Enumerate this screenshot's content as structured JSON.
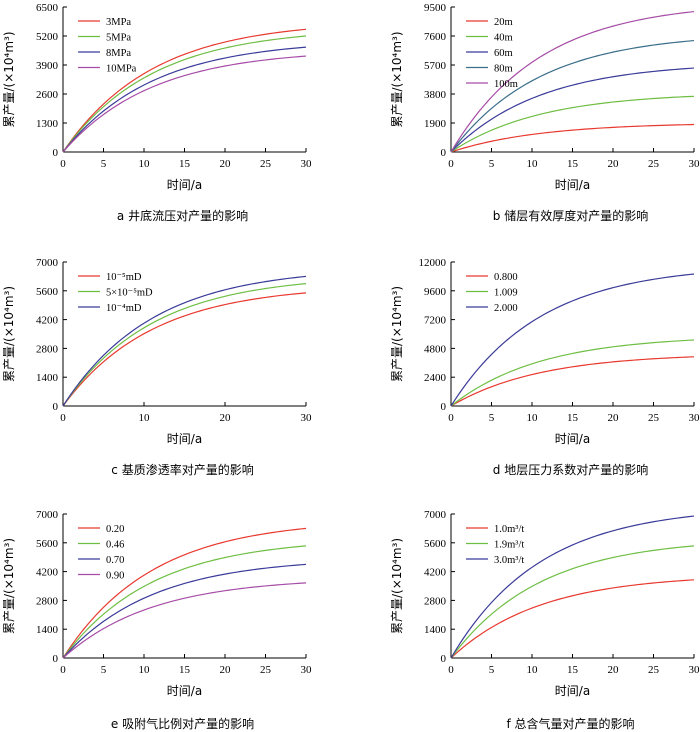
{
  "chart_data": [
    {
      "type": "line",
      "id": "a",
      "caption": "a  井底流压对产量的影响",
      "xlabel": "时间/a",
      "ylabel": "累产量/(×10⁴m³)",
      "xlim": [
        0,
        30
      ],
      "ylim": [
        0,
        6500
      ],
      "xticks": [
        0,
        5,
        10,
        15,
        20,
        25,
        30
      ],
      "yticks": [
        0,
        1300,
        2600,
        3900,
        5200,
        6500
      ],
      "legend_position": "top-left",
      "series": [
        {
          "name": "3MPa",
          "color": "#e8392f",
          "values_at_30": 5500
        },
        {
          "name": "5MPa",
          "color": "#6fbe44",
          "values_at_30": 5200
        },
        {
          "name": "8MPa",
          "color": "#3b3b9a",
          "values_at_30": 4700
        },
        {
          "name": "10MPa",
          "color": "#a64ca6",
          "values_at_30": 4300
        }
      ]
    },
    {
      "type": "line",
      "id": "b",
      "caption": "b  储层有效厚度对产量的影响",
      "xlabel": "时间/a",
      "ylabel": "累产量/(×10⁴m³)",
      "xlim": [
        0,
        30
      ],
      "ylim": [
        0,
        9500
      ],
      "xticks": [
        0,
        5,
        10,
        15,
        20,
        25,
        30
      ],
      "yticks": [
        0,
        1900,
        3800,
        5700,
        7600,
        9500
      ],
      "legend_position": "top-left",
      "series": [
        {
          "name": "20m",
          "color": "#e8392f",
          "values_at_30": 1800
        },
        {
          "name": "40m",
          "color": "#6fbe44",
          "values_at_30": 3650
        },
        {
          "name": "60m",
          "color": "#3b3b9a",
          "values_at_30": 5500
        },
        {
          "name": "80m",
          "color": "#3b6e8a",
          "values_at_30": 7300
        },
        {
          "name": "100m",
          "color": "#a64ca6",
          "values_at_30": 9200
        }
      ]
    },
    {
      "type": "line",
      "id": "c",
      "caption": "c  基质渗透率对产量的影响",
      "xlabel": "时间/a",
      "ylabel": "累产量/(×10⁴m³)",
      "xlim": [
        0,
        30
      ],
      "ylim": [
        0,
        7000
      ],
      "xticks": [
        0,
        10,
        20,
        30
      ],
      "yticks": [
        0,
        1400,
        2800,
        4200,
        5600,
        7000
      ],
      "legend_position": "top-left",
      "series": [
        {
          "name": "10⁻⁵mD",
          "color": "#e8392f",
          "values_at_30": 5500
        },
        {
          "name": "5×10⁻⁵mD",
          "color": "#6fbe44",
          "values_at_30": 5950
        },
        {
          "name": "10⁻⁴mD",
          "color": "#3b3b9a",
          "values_at_30": 6300
        }
      ]
    },
    {
      "type": "line",
      "id": "d",
      "caption": "d  地层压力系数对产量的影响",
      "xlabel": "时间/a",
      "ylabel": "累产量/(×10⁴m³)",
      "xlim": [
        0,
        30
      ],
      "ylim": [
        0,
        12000
      ],
      "xticks": [
        0,
        5,
        10,
        15,
        20,
        25,
        30
      ],
      "yticks": [
        0,
        2400,
        4800,
        7200,
        9600,
        12000
      ],
      "legend_position": "top-left",
      "series": [
        {
          "name": "0.800",
          "color": "#e8392f",
          "values_at_30": 4100
        },
        {
          "name": "1.009",
          "color": "#6fbe44",
          "values_at_30": 5500
        },
        {
          "name": "2.000",
          "color": "#3b3b9a",
          "values_at_30": 11000
        }
      ]
    },
    {
      "type": "line",
      "id": "e",
      "caption": "e  吸附气比例对产量的影响",
      "xlabel": "时间/a",
      "ylabel": "累产量/(×10⁴m³)",
      "xlim": [
        0,
        30
      ],
      "ylim": [
        0,
        7000
      ],
      "xticks": [
        0,
        5,
        10,
        15,
        20,
        25,
        30
      ],
      "yticks": [
        0,
        1400,
        2800,
        4200,
        5600,
        7000
      ],
      "legend_position": "top-left",
      "series": [
        {
          "name": "0.20",
          "color": "#e8392f",
          "values_at_30": 6300
        },
        {
          "name": "0.46",
          "color": "#6fbe44",
          "values_at_30": 5450
        },
        {
          "name": "0.70",
          "color": "#3b3b9a",
          "values_at_30": 4550
        },
        {
          "name": "0.90",
          "color": "#a64ca6",
          "values_at_30": 3650
        }
      ]
    },
    {
      "type": "line",
      "id": "f",
      "caption": "f  总含气量对产量的影响",
      "xlabel": "时间/a",
      "ylabel": "累产量/(×10⁴m³)",
      "xlim": [
        0,
        30
      ],
      "ylim": [
        0,
        7000
      ],
      "xticks": [
        0,
        5,
        10,
        15,
        20,
        25,
        30
      ],
      "yticks": [
        0,
        1400,
        2800,
        4200,
        5600,
        7000
      ],
      "legend_position": "top-left",
      "series": [
        {
          "name": "1.0m³/t",
          "color": "#e8392f",
          "values_at_30": 3800
        },
        {
          "name": "1.9m³/t",
          "color": "#6fbe44",
          "values_at_30": 5450
        },
        {
          "name": "3.0m³/t",
          "color": "#3b3b9a",
          "values_at_30": 6900
        }
      ]
    }
  ]
}
